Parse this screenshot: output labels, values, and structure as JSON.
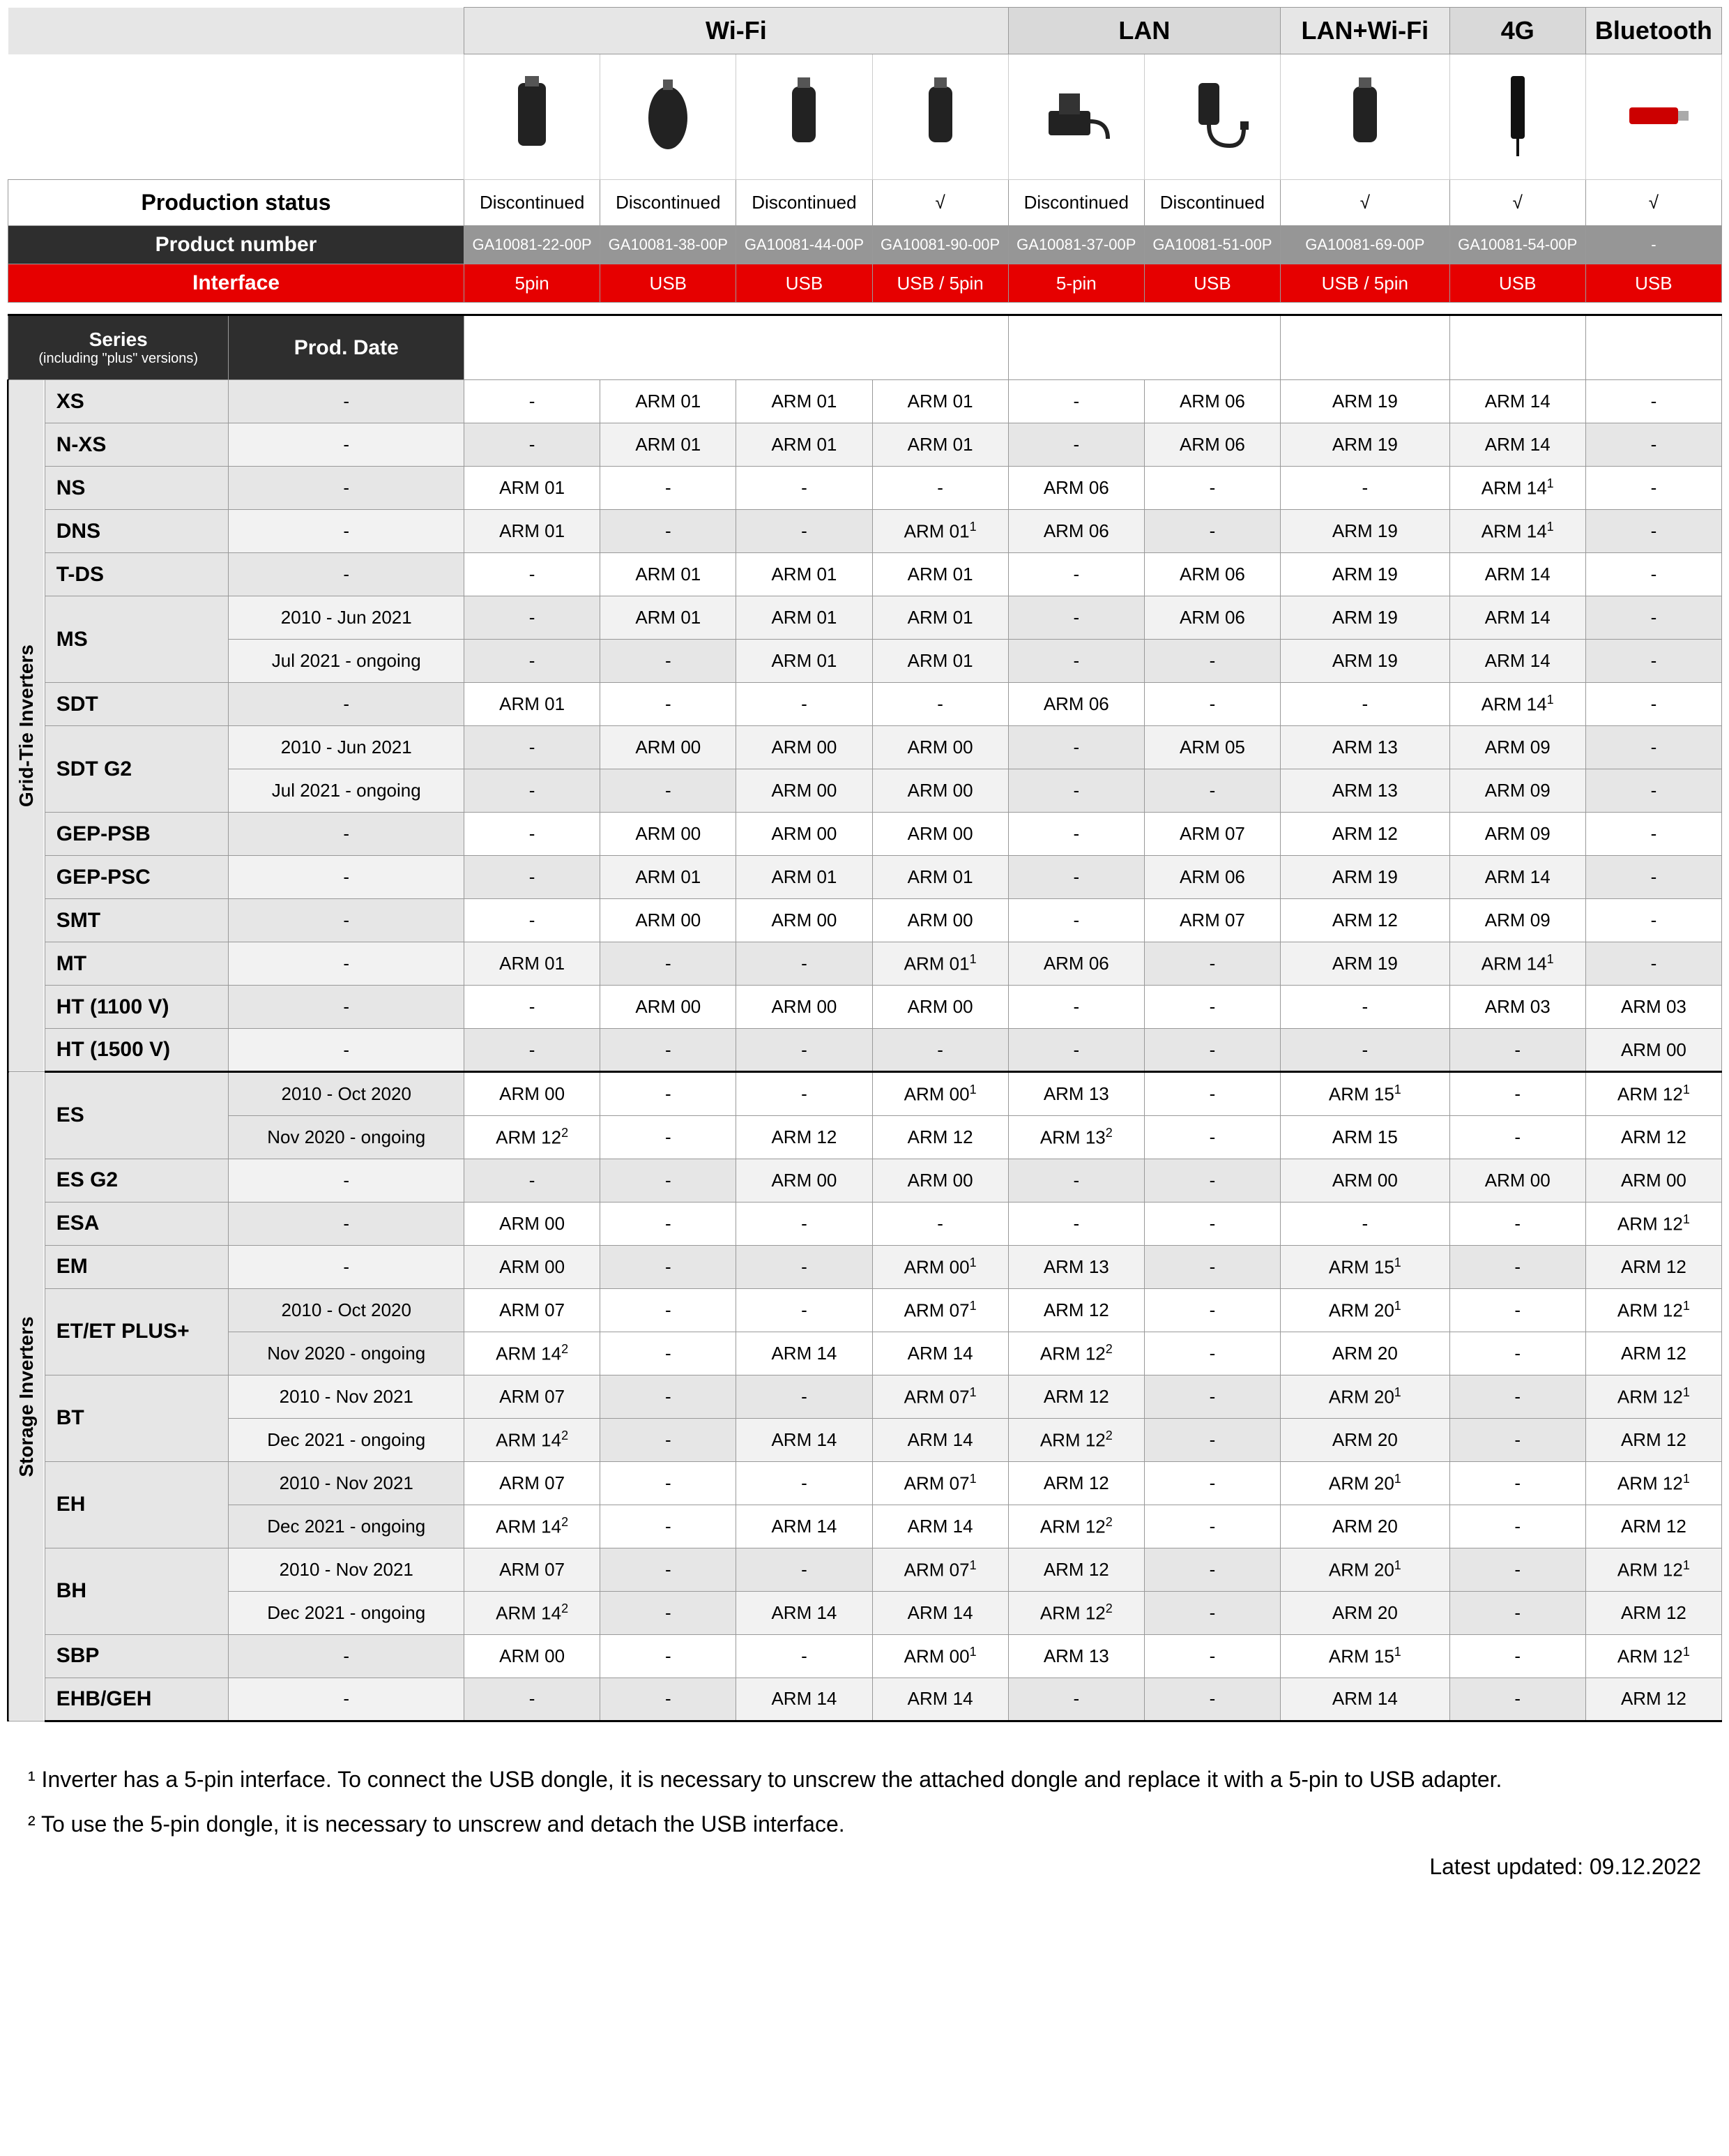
{
  "headers": {
    "wifi": "Wi-Fi",
    "lan": "LAN",
    "lanwifi": "LAN+Wi-Fi",
    "4g": "4G",
    "bluetooth": "Bluetooth"
  },
  "labels": {
    "production_status": "Production status",
    "product_number": "Product number",
    "interface": "Interface",
    "series": "Series",
    "series_sub": "(including \"plus\" versions)",
    "prod_date": "Prod. Date",
    "discontinued": "Discontinued",
    "check": "√"
  },
  "product_numbers": [
    "GA10081-22-00P",
    "GA10081-38-00P",
    "GA10081-44-00P",
    "GA10081-90-00P",
    "GA10081-37-00P",
    "GA10081-51-00P",
    "GA10081-69-00P",
    "GA10081-54-00P",
    "-"
  ],
  "interfaces": [
    "5pin",
    "USB",
    "USB",
    "USB / 5pin",
    "5-pin",
    "USB",
    "USB / 5pin",
    "USB",
    "USB"
  ],
  "production_status": [
    "Discontinued",
    "Discontinued",
    "Discontinued",
    "√",
    "Discontinued",
    "Discontinued",
    "√",
    "√",
    "√"
  ],
  "categories": {
    "grid_tie": "Grid-Tie Inverters",
    "storage": "Storage Inverters"
  },
  "grid_tie_rows": [
    {
      "series": "XS",
      "dates": [
        "-"
      ],
      "cells": [
        [
          "-",
          "ARM 01",
          "ARM 01",
          "ARM 01",
          "-",
          "ARM 06",
          "ARM 19",
          "ARM 14",
          "-"
        ]
      ]
    },
    {
      "series": "N-XS",
      "dates": [
        "-"
      ],
      "alt": true,
      "cells": [
        [
          "-",
          "ARM 01",
          "ARM 01",
          "ARM 01",
          "-",
          "ARM 06",
          "ARM 19",
          "ARM 14",
          "-"
        ]
      ]
    },
    {
      "series": "NS",
      "dates": [
        "-"
      ],
      "cells": [
        [
          "ARM 01",
          "-",
          "-",
          "-",
          "ARM 06",
          "-",
          "-",
          "ARM 14 ¹",
          "-"
        ]
      ]
    },
    {
      "series": "DNS",
      "dates": [
        "-"
      ],
      "alt": true,
      "cells": [
        [
          "ARM 01",
          "-",
          "-",
          "ARM 01 ¹",
          "ARM 06",
          "-",
          "ARM 19",
          "ARM 14 ¹",
          "-"
        ]
      ]
    },
    {
      "series": "T-DS",
      "dates": [
        "-"
      ],
      "cells": [
        [
          "-",
          "ARM 01",
          "ARM 01",
          "ARM 01",
          "-",
          "ARM 06",
          "ARM 19",
          "ARM 14",
          "-"
        ]
      ]
    },
    {
      "series": "MS",
      "dates": [
        "2010 - Jun 2021",
        "Jul 2021 - ongoing"
      ],
      "alt": true,
      "cells": [
        [
          "-",
          "ARM 01",
          "ARM 01",
          "ARM 01",
          "-",
          "ARM 06",
          "ARM 19",
          "ARM 14",
          "-"
        ],
        [
          "-",
          "-",
          "ARM 01",
          "ARM 01",
          "-",
          "-",
          "ARM 19",
          "ARM 14",
          "-"
        ]
      ]
    },
    {
      "series": "SDT",
      "dates": [
        "-"
      ],
      "cells": [
        [
          "ARM 01",
          "-",
          "-",
          "-",
          "ARM 06",
          "-",
          "-",
          "ARM 14 ¹",
          "-"
        ]
      ]
    },
    {
      "series": "SDT G2",
      "dates": [
        "2010 - Jun 2021",
        "Jul 2021 - ongoing"
      ],
      "alt": true,
      "cells": [
        [
          "-",
          "ARM 00",
          "ARM 00",
          "ARM 00",
          "-",
          "ARM 05",
          "ARM 13",
          "ARM 09",
          "-"
        ],
        [
          "-",
          "-",
          "ARM 00",
          "ARM 00",
          "-",
          "-",
          "ARM 13",
          "ARM 09",
          "-"
        ]
      ]
    },
    {
      "series": "GEP-PSB",
      "dates": [
        "-"
      ],
      "cells": [
        [
          "-",
          "ARM 00",
          "ARM 00",
          "ARM 00",
          "-",
          "ARM 07",
          "ARM 12",
          "ARM 09",
          "-"
        ]
      ]
    },
    {
      "series": "GEP-PSC",
      "dates": [
        "-"
      ],
      "alt": true,
      "cells": [
        [
          "-",
          "ARM 01",
          "ARM 01",
          "ARM 01",
          "-",
          "ARM 06",
          "ARM 19",
          "ARM 14",
          "-"
        ]
      ]
    },
    {
      "series": "SMT",
      "dates": [
        "-"
      ],
      "cells": [
        [
          "-",
          "ARM 00",
          "ARM 00",
          "ARM 00",
          "-",
          "ARM 07",
          "ARM 12",
          "ARM 09",
          "-"
        ]
      ]
    },
    {
      "series": "MT",
      "dates": [
        "-"
      ],
      "alt": true,
      "cells": [
        [
          "ARM 01",
          "-",
          "-",
          "ARM 01 ¹",
          "ARM 06",
          "-",
          "ARM 19",
          "ARM 14 ¹",
          "-"
        ]
      ]
    },
    {
      "series": "HT (1100 V)",
      "dates": [
        "-"
      ],
      "cells": [
        [
          "-",
          "ARM 00",
          "ARM 00",
          "ARM 00",
          "-",
          "-",
          "-",
          "ARM 03",
          "ARM 03"
        ]
      ]
    },
    {
      "series": "HT (1500 V)",
      "dates": [
        "-"
      ],
      "alt": true,
      "cells": [
        [
          "-",
          "-",
          "-",
          "-",
          "-",
          "-",
          "-",
          "-",
          "ARM 00"
        ]
      ]
    }
  ],
  "storage_rows": [
    {
      "series": "ES",
      "dates": [
        "2010 - Oct 2020",
        "Nov 2020 - ongoing"
      ],
      "cells": [
        [
          "ARM 00",
          "-",
          "-",
          "ARM 00 ¹",
          "ARM 13",
          "-",
          "ARM 15 ¹",
          "-",
          "ARM 12 ¹"
        ],
        [
          "ARM 12 ²",
          "-",
          "ARM 12",
          "ARM 12",
          "ARM 13 ²",
          "-",
          "ARM 15",
          "-",
          "ARM 12"
        ]
      ]
    },
    {
      "series": "ES G2",
      "dates": [
        "-"
      ],
      "alt": true,
      "cells": [
        [
          "-",
          "-",
          "ARM 00",
          "ARM 00",
          "-",
          "-",
          "ARM 00",
          "ARM 00",
          "ARM 00"
        ]
      ]
    },
    {
      "series": "ESA",
      "dates": [
        "-"
      ],
      "cells": [
        [
          "ARM 00",
          "-",
          "-",
          "-",
          "-",
          "-",
          "-",
          "-",
          "ARM 12 ¹"
        ]
      ]
    },
    {
      "series": "EM",
      "dates": [
        "-"
      ],
      "alt": true,
      "cells": [
        [
          "ARM 00",
          "-",
          "-",
          "ARM 00 ¹",
          "ARM 13",
          "-",
          "ARM 15 ¹",
          "-",
          "ARM 12"
        ]
      ]
    },
    {
      "series": "ET/ET PLUS+",
      "dates": [
        "2010 - Oct 2020",
        "Nov 2020 - ongoing"
      ],
      "cells": [
        [
          "ARM 07",
          "-",
          "-",
          "ARM 07 ¹",
          "ARM 12",
          "-",
          "ARM 20 ¹",
          "-",
          "ARM 12 ¹"
        ],
        [
          "ARM 14 ²",
          "-",
          "ARM 14",
          "ARM 14",
          "ARM 12 ²",
          "-",
          "ARM 20",
          "-",
          "ARM 12"
        ]
      ]
    },
    {
      "series": "BT",
      "dates": [
        "2010 - Nov 2021",
        "Dec 2021 - ongoing"
      ],
      "alt": true,
      "cells": [
        [
          "ARM 07",
          "-",
          "-",
          "ARM 07 ¹",
          "ARM 12",
          "-",
          "ARM 20 ¹",
          "-",
          "ARM 12 ¹"
        ],
        [
          "ARM 14 ²",
          "-",
          "ARM 14",
          "ARM 14",
          "ARM 12 ²",
          "-",
          "ARM 20",
          "-",
          "ARM 12"
        ]
      ]
    },
    {
      "series": "EH",
      "dates": [
        "2010 - Nov 2021",
        "Dec 2021 - ongoing"
      ],
      "cells": [
        [
          "ARM 07",
          "-",
          "-",
          "ARM 07 ¹",
          "ARM 12",
          "-",
          "ARM 20 ¹",
          "-",
          "ARM 12 ¹"
        ],
        [
          "ARM 14 ²",
          "-",
          "ARM 14",
          "ARM 14",
          "ARM 12 ²",
          "-",
          "ARM 20",
          "-",
          "ARM 12"
        ]
      ]
    },
    {
      "series": "BH",
      "dates": [
        "2010 - Nov 2021",
        "Dec 2021 - ongoing"
      ],
      "alt": true,
      "cells": [
        [
          "ARM 07",
          "-",
          "-",
          "ARM 07 ¹",
          "ARM 12",
          "-",
          "ARM 20 ¹",
          "-",
          "ARM 12 ¹"
        ],
        [
          "ARM 14 ²",
          "-",
          "ARM 14",
          "ARM 14",
          "ARM 12 ²",
          "-",
          "ARM 20",
          "-",
          "ARM 12"
        ]
      ]
    },
    {
      "series": "SBP",
      "dates": [
        "-"
      ],
      "cells": [
        [
          "ARM 00",
          "-",
          "-",
          "ARM 00 ¹",
          "ARM 13",
          "-",
          "ARM 15 ¹",
          "-",
          "ARM 12 ¹"
        ]
      ]
    },
    {
      "series": "EHB/GEH",
      "dates": [
        "-"
      ],
      "alt": true,
      "cells": [
        [
          "-",
          "-",
          "ARM 14",
          "ARM 14",
          "-",
          "-",
          "ARM 14",
          "-",
          "ARM 12"
        ]
      ]
    }
  ],
  "footnotes": {
    "fn1": "¹ Inverter has a 5-pin interface. To connect the USB dongle, it is necessary to unscrew the attached dongle and replace it with a 5-pin to USB adapter.",
    "fn2": "² To use the 5-pin dongle, it is necessary to unscrew and detach the USB interface.",
    "updated": "Latest updated: 09.12.2022"
  },
  "colors": {
    "header_light": "#e6e6e6",
    "header_medium": "#d9d9d9",
    "red": "#e60000",
    "dark_gray": "#2e2e2e",
    "gray": "#969696"
  }
}
